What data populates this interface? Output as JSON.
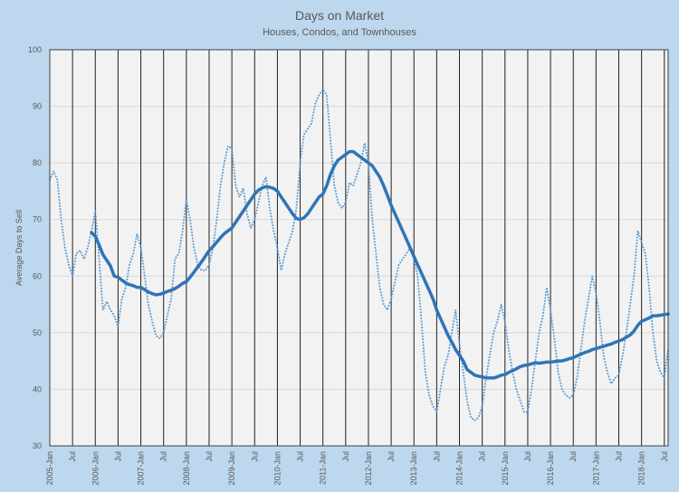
{
  "chart_data": {
    "type": "line",
    "title": "Days on Market",
    "subtitle": "Houses, Condos, and Townhouses",
    "xlabel": "",
    "ylabel": "Average Days to Sell",
    "ylim": [
      30,
      100
    ],
    "yticks": [
      30,
      40,
      50,
      60,
      70,
      80,
      90,
      100
    ],
    "x_start": "2005-Jan",
    "x_end": "2018-Aug",
    "xtick_labels": [
      "2005-Jan",
      "Jul",
      "2006-Jan",
      "Jul",
      "2007-Jan",
      "Jul",
      "2008-Jan",
      "Jul",
      "2009-Jan",
      "Jul",
      "2010-Jan",
      "Jul",
      "2011-Jan",
      "Jul",
      "2012-Jan",
      "Jul",
      "2013-Jan",
      "Jul",
      "2014-Jan",
      "Jul",
      "2015-Jan",
      "Jul",
      "2016-Jan",
      "Jul",
      "2017-Jan",
      "Jul",
      "2018-Jan",
      "Jul"
    ],
    "grid": {
      "horizontal": true,
      "vertical": true
    },
    "legend": "none",
    "colors": {
      "background": "#BDD7EE",
      "plot_area": "#F2F2F2",
      "monthly": "#5B9BD5",
      "moving_average": "#2E75B6"
    },
    "series": [
      {
        "style": "dotted",
        "start": "2005-Jan",
        "values": [
          77,
          78.5,
          77,
          70,
          65,
          62,
          60,
          64,
          64.5,
          63,
          65,
          68,
          71.5,
          63,
          54,
          55.5,
          54,
          53,
          51,
          56,
          58,
          62,
          64,
          67.5,
          65,
          60,
          55,
          52,
          49.5,
          49,
          50,
          53,
          56,
          63,
          64,
          68,
          73.5,
          70,
          65,
          62,
          61,
          61,
          62,
          65,
          70,
          76,
          80,
          83,
          82.5,
          76,
          74,
          75.5,
          71,
          68.5,
          70,
          73,
          76,
          77.5,
          72,
          68,
          65,
          61,
          64,
          66,
          68,
          72,
          80,
          85,
          86,
          87,
          90.5,
          92,
          93,
          92,
          84,
          76,
          73,
          72,
          73,
          76.5,
          76,
          78,
          80,
          83.5,
          80,
          70,
          64,
          58,
          55,
          54,
          56,
          59,
          62,
          63,
          64,
          65,
          63,
          60,
          52,
          43,
          39,
          37,
          36,
          40,
          44,
          46,
          50,
          54,
          48,
          43,
          38,
          35,
          34.5,
          35,
          37,
          42,
          46,
          50,
          52,
          55,
          52,
          47,
          43,
          40,
          38,
          36,
          36,
          40,
          45,
          50,
          53,
          58,
          54,
          49,
          43,
          40,
          39,
          38.5,
          39,
          42,
          47,
          52,
          56,
          60,
          57,
          52,
          46,
          43,
          41,
          42,
          42.5,
          46,
          50,
          55,
          60,
          68,
          66,
          64,
          58,
          50,
          45,
          43,
          42,
          47
        ]
      },
      {
        "style": "solid-thick",
        "start": "2005-Dec",
        "values": [
          67.7,
          67,
          65.5,
          63.8,
          62.8,
          61.8,
          60,
          59.8,
          59.3,
          58.8,
          58.5,
          58.3,
          58,
          58,
          57.6,
          57.2,
          56.9,
          56.7,
          56.8,
          57,
          57.3,
          57.5,
          57.8,
          58.2,
          58.7,
          59,
          59.8,
          60.7,
          61.6,
          62.5,
          63.5,
          64.5,
          65.2,
          66,
          66.8,
          67.5,
          68,
          68.5,
          69.5,
          70.5,
          71.5,
          72.5,
          73.5,
          74.5,
          75.2,
          75.6,
          75.8,
          75.7,
          75.5,
          75,
          74,
          73,
          72,
          71,
          70.2,
          70,
          70.3,
          71,
          72,
          73,
          74,
          74.5,
          76,
          78,
          79.5,
          80.5,
          81,
          81.5,
          82,
          82,
          81.5,
          81,
          80.5,
          80,
          79.5,
          78.5,
          77.5,
          76,
          74.3,
          72.5,
          71,
          69.5,
          68,
          66.5,
          65,
          63.5,
          62,
          60.5,
          59,
          57.5,
          56,
          54,
          52.5,
          51,
          49.5,
          48.3,
          47,
          46,
          45,
          43.5,
          43,
          42.5,
          42.3,
          42.2,
          42,
          42,
          42,
          42.2,
          42.5,
          42.6,
          43,
          43.3,
          43.6,
          44,
          44.2,
          44.3,
          44.5,
          44.7,
          44.6,
          44.7,
          44.8,
          44.8,
          44.9,
          45,
          45,
          45.2,
          45.4,
          45.6,
          45.9,
          46.2,
          46.5,
          46.7,
          47,
          47.2,
          47.4,
          47.6,
          47.8,
          48,
          48.3,
          48.5,
          48.8,
          49.2,
          49.6,
          50.3,
          51.3,
          52,
          52.3,
          52.6,
          53,
          53,
          53.1,
          53.2,
          53.3
        ]
      }
    ]
  }
}
